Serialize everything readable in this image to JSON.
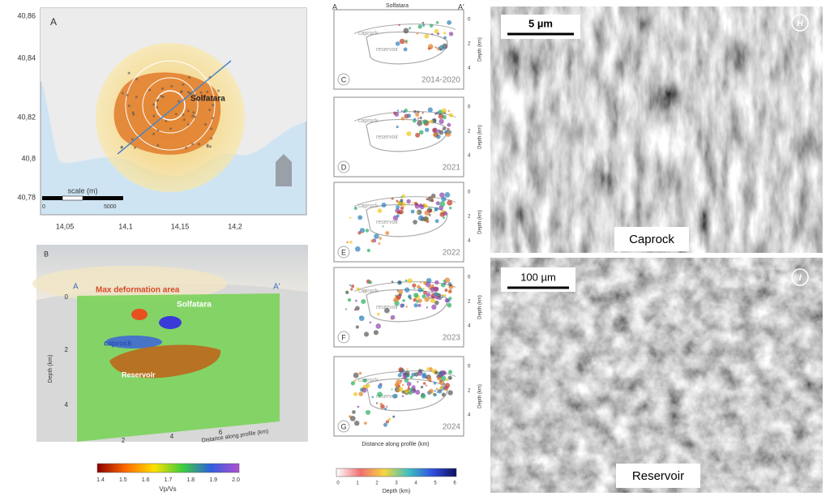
{
  "panel_a": {
    "label": "A",
    "lat_ticks": [
      "40,86",
      "40,84",
      "40,82",
      "40,8",
      "40,78"
    ],
    "lon_ticks": [
      "14,05",
      "14,1",
      "14,15",
      "14,2"
    ],
    "site": "Solfatara",
    "scale_title": "scale (m)",
    "scale_start": "0",
    "scale_end": "5000"
  },
  "panel_b": {
    "label": "B",
    "deformation": "Max deformation area",
    "section_start": "A",
    "section_end": "A'",
    "site": "Solfatara",
    "caprock": "caprock",
    "reservoir": "Reservoir",
    "y_label": "Depth (km)",
    "y_ticks": [
      "0",
      "2",
      "4"
    ],
    "x_ticks": [
      "2",
      "4",
      "6"
    ],
    "x_label": "Distance along profile (km)",
    "colorbar": {
      "ticks": [
        "1.4",
        "1.5",
        "1.6",
        "1.7",
        "1.8",
        "1.9",
        "2.0"
      ],
      "label": "Vp/Vs"
    }
  },
  "sections": {
    "start": "A",
    "site": "Solfatara",
    "end": "A'",
    "caprock": "caprock",
    "reservoir": "reservoir",
    "y_label": "Depth (km)",
    "y_ticks": [
      "0",
      "2",
      "4"
    ],
    "x_label": "Distance along profile (km)",
    "panels": [
      {
        "label": "C",
        "period": "2014-2020"
      },
      {
        "label": "D",
        "period": "2021"
      },
      {
        "label": "E",
        "period": "2022"
      },
      {
        "label": "F",
        "period": "2023"
      },
      {
        "label": "G",
        "period": "2024"
      }
    ],
    "colorbar": {
      "ticks": [
        "0",
        "1",
        "2",
        "3",
        "4",
        "5",
        "6"
      ],
      "label": "Depth (km)"
    }
  },
  "sem": [
    {
      "label": "H",
      "scale": "5 µm",
      "name": "Caprock"
    },
    {
      "label": "I",
      "scale": "100 µm",
      "name": "Reservoir"
    }
  ]
}
